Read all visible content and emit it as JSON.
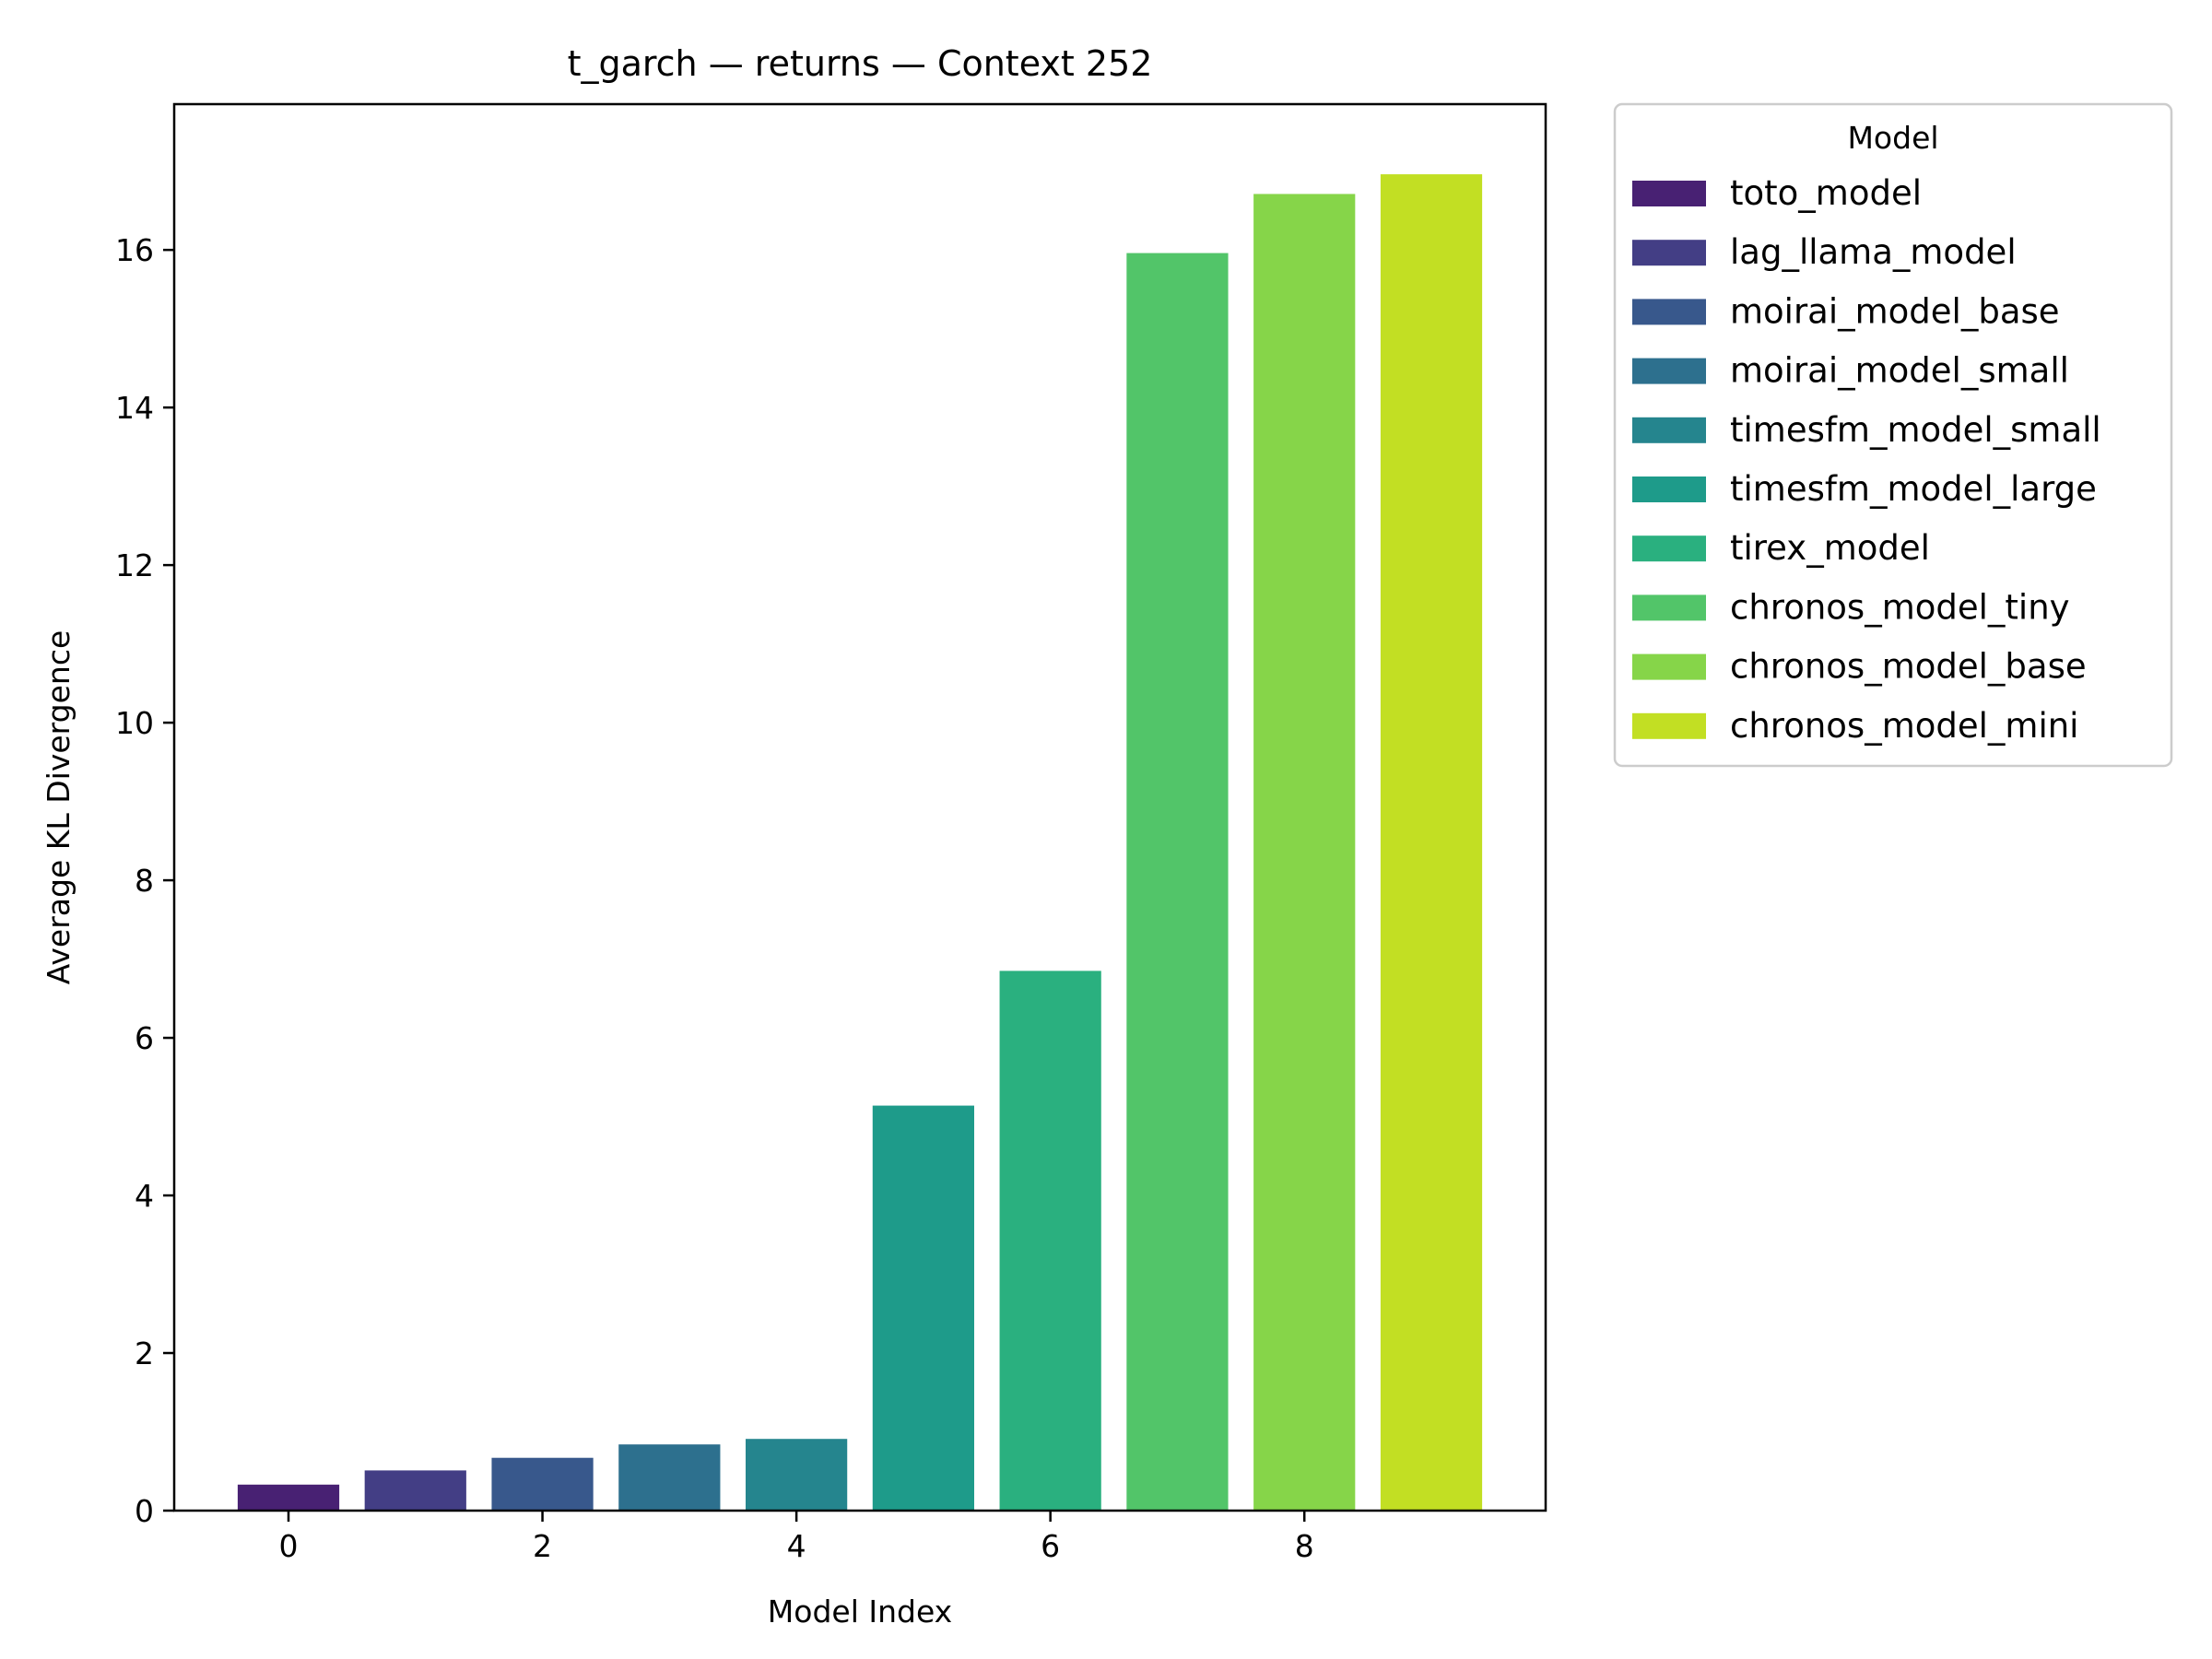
{
  "chart_data": {
    "type": "bar",
    "title": "t_garch — returns — Context 252",
    "xlabel": "Model Index",
    "ylabel": "Average KL Divergence",
    "x": [
      0,
      1,
      2,
      3,
      4,
      5,
      6,
      7,
      8,
      9
    ],
    "values": [
      0.33,
      0.51,
      0.67,
      0.84,
      0.91,
      5.14,
      6.85,
      15.96,
      16.71,
      16.96
    ],
    "xlim": [
      -0.9,
      9.9
    ],
    "ylim": [
      0,
      17.85
    ],
    "xticks": [
      0,
      2,
      4,
      6,
      8
    ],
    "yticks": [
      0,
      2,
      4,
      6,
      8,
      10,
      12,
      14,
      16
    ],
    "grid": false,
    "legend": {
      "title": "Model",
      "placement": "outside upper right"
    },
    "series": [
      {
        "name": "toto_model",
        "color": "#482173"
      },
      {
        "name": "lag_llama_model",
        "color": "#433e85"
      },
      {
        "name": "moirai_model_base",
        "color": "#38588c"
      },
      {
        "name": "moirai_model_small",
        "color": "#2d708e"
      },
      {
        "name": "timesfm_model_small",
        "color": "#25858e"
      },
      {
        "name": "timesfm_model_large",
        "color": "#1e9b8a"
      },
      {
        "name": "tirex_model",
        "color": "#2ab07f"
      },
      {
        "name": "chronos_model_tiny",
        "color": "#52c569"
      },
      {
        "name": "chronos_model_base",
        "color": "#86d549"
      },
      {
        "name": "chronos_model_mini",
        "color": "#c2df23"
      }
    ]
  }
}
